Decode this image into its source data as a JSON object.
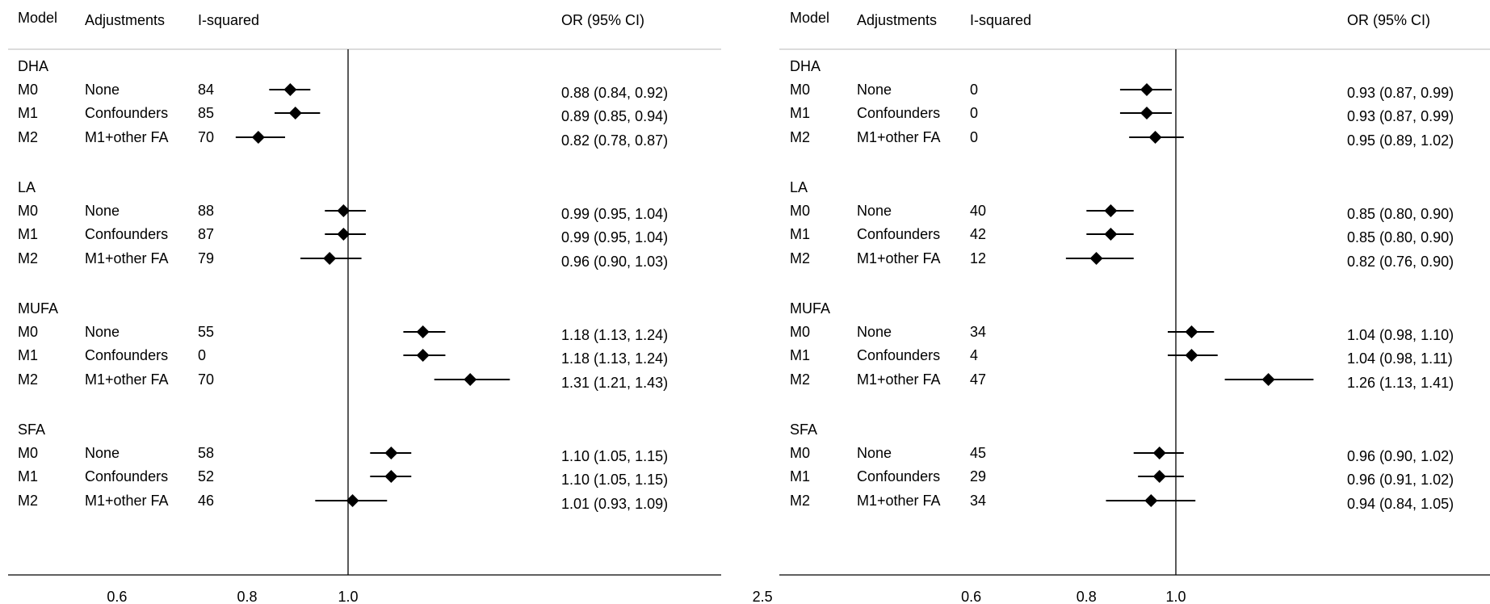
{
  "chart_data": [
    {
      "type": "forest",
      "title": "",
      "headers": {
        "model": "Model",
        "adjustments": "Adjustments",
        "i2": "I-squared",
        "or": "OR (95% CI)"
      },
      "x_ticks": [
        "0.6",
        "0.8",
        "1.0",
        "2.5"
      ],
      "reference_line": 1.0,
      "groups": [
        {
          "name": "DHA",
          "rows": [
            {
              "model": "M0",
              "adj": "None",
              "i2": "84",
              "or": 0.88,
              "lo": 0.84,
              "hi": 0.92,
              "label": "0.88 (0.84, 0.92)"
            },
            {
              "model": "M1",
              "adj": "Confounders",
              "i2": "85",
              "or": 0.89,
              "lo": 0.85,
              "hi": 0.94,
              "label": "0.89 (0.85, 0.94)"
            },
            {
              "model": "M2",
              "adj": "M1+other FA",
              "i2": "70",
              "or": 0.82,
              "lo": 0.78,
              "hi": 0.87,
              "label": "0.82 (0.78, 0.87)"
            }
          ]
        },
        {
          "name": "LA",
          "rows": [
            {
              "model": "M0",
              "adj": "None",
              "i2": "88",
              "or": 0.99,
              "lo": 0.95,
              "hi": 1.04,
              "label": "0.99 (0.95, 1.04)"
            },
            {
              "model": "M1",
              "adj": "Confounders",
              "i2": "87",
              "or": 0.99,
              "lo": 0.95,
              "hi": 1.04,
              "label": "0.99 (0.95, 1.04)"
            },
            {
              "model": "M2",
              "adj": "M1+other FA",
              "i2": "79",
              "or": 0.96,
              "lo": 0.9,
              "hi": 1.03,
              "label": "0.96 (0.90, 1.03)"
            }
          ]
        },
        {
          "name": "MUFA",
          "rows": [
            {
              "model": "M0",
              "adj": "None",
              "i2": "55",
              "or": 1.18,
              "lo": 1.13,
              "hi": 1.24,
              "label": "1.18 (1.13, 1.24)"
            },
            {
              "model": "M1",
              "adj": "Confounders",
              "i2": "0",
              "or": 1.18,
              "lo": 1.13,
              "hi": 1.24,
              "label": "1.18 (1.13, 1.24)"
            },
            {
              "model": "M2",
              "adj": "M1+other FA",
              "i2": "70",
              "or": 1.31,
              "lo": 1.21,
              "hi": 1.43,
              "label": "1.31 (1.21, 1.43)"
            }
          ]
        },
        {
          "name": "SFA",
          "rows": [
            {
              "model": "M0",
              "adj": "None",
              "i2": "58",
              "or": 1.1,
              "lo": 1.05,
              "hi": 1.15,
              "label": "1.10 (1.05, 1.15)"
            },
            {
              "model": "M1",
              "adj": "Confounders",
              "i2": "52",
              "or": 1.1,
              "lo": 1.05,
              "hi": 1.15,
              "label": "1.10 (1.05, 1.15)"
            },
            {
              "model": "M2",
              "adj": "M1+other FA",
              "i2": "46",
              "or": 1.01,
              "lo": 0.93,
              "hi": 1.09,
              "label": "1.01 (0.93, 1.09)"
            }
          ]
        }
      ]
    },
    {
      "type": "forest",
      "title": "",
      "headers": {
        "model": "Model",
        "adjustments": "Adjustments",
        "i2": "I-squared",
        "or": "OR (95% CI)"
      },
      "x_ticks": [
        "0.6",
        "0.8",
        "1.0",
        "2.5"
      ],
      "reference_line": 1.0,
      "groups": [
        {
          "name": "DHA",
          "rows": [
            {
              "model": "M0",
              "adj": "None",
              "i2": "0",
              "or": 0.93,
              "lo": 0.87,
              "hi": 0.99,
              "label": "0.93 (0.87, 0.99)"
            },
            {
              "model": "M1",
              "adj": "Confounders",
              "i2": "0",
              "or": 0.93,
              "lo": 0.87,
              "hi": 0.99,
              "label": "0.93 (0.87, 0.99)"
            },
            {
              "model": "M2",
              "adj": "M1+other FA",
              "i2": "0",
              "or": 0.95,
              "lo": 0.89,
              "hi": 1.02,
              "label": "0.95 (0.89, 1.02)"
            }
          ]
        },
        {
          "name": "LA",
          "rows": [
            {
              "model": "M0",
              "adj": "None",
              "i2": "40",
              "or": 0.85,
              "lo": 0.8,
              "hi": 0.9,
              "label": "0.85 (0.80, 0.90)"
            },
            {
              "model": "M1",
              "adj": "Confounders",
              "i2": "42",
              "or": 0.85,
              "lo": 0.8,
              "hi": 0.9,
              "label": "0.85 (0.80, 0.90)"
            },
            {
              "model": "M2",
              "adj": "M1+other FA",
              "i2": "12",
              "or": 0.82,
              "lo": 0.76,
              "hi": 0.9,
              "label": "0.82 (0.76, 0.90)"
            }
          ]
        },
        {
          "name": "MUFA",
          "rows": [
            {
              "model": "M0",
              "adj": "None",
              "i2": "34",
              "or": 1.04,
              "lo": 0.98,
              "hi": 1.1,
              "label": "1.04 (0.98, 1.10)"
            },
            {
              "model": "M1",
              "adj": "Confounders",
              "i2": "4",
              "or": 1.04,
              "lo": 0.98,
              "hi": 1.11,
              "label": "1.04 (0.98, 1.11)"
            },
            {
              "model": "M2",
              "adj": "M1+other FA",
              "i2": "47",
              "or": 1.26,
              "lo": 1.13,
              "hi": 1.41,
              "label": "1.26 (1.13, 1.41)"
            }
          ]
        },
        {
          "name": "SFA",
          "rows": [
            {
              "model": "M0",
              "adj": "None",
              "i2": "45",
              "or": 0.96,
              "lo": 0.9,
              "hi": 1.02,
              "label": "0.96 (0.90, 1.02)"
            },
            {
              "model": "M1",
              "adj": "Confounders",
              "i2": "29",
              "or": 0.96,
              "lo": 0.91,
              "hi": 1.02,
              "label": "0.96 (0.91, 1.02)"
            },
            {
              "model": "M2",
              "adj": "M1+other FA",
              "i2": "34",
              "or": 0.94,
              "lo": 0.84,
              "hi": 1.05,
              "label": "0.94 (0.84, 1.05)"
            }
          ]
        }
      ]
    }
  ]
}
